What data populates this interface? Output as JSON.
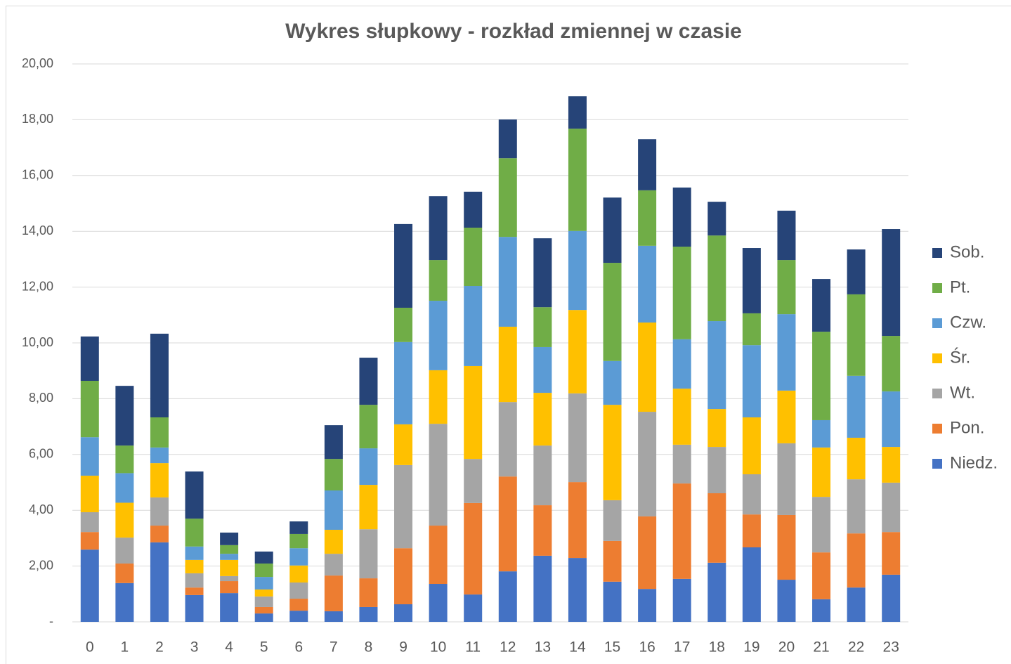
{
  "chart_data": {
    "type": "bar",
    "stacked": true,
    "title": "Wykres słupkowy - rozkład zmiennej w czasie",
    "categories": [
      "0",
      "1",
      "2",
      "3",
      "4",
      "5",
      "6",
      "7",
      "8",
      "9",
      "10",
      "11",
      "12",
      "13",
      "14",
      "15",
      "16",
      "17",
      "18",
      "19",
      "20",
      "21",
      "22",
      "23"
    ],
    "series": [
      {
        "name": "Niedz.",
        "color": "#4472c4",
        "values": [
          2.59,
          1.39,
          2.85,
          0.96,
          1.03,
          0.3,
          0.4,
          0.38,
          0.53,
          0.63,
          1.36,
          0.98,
          1.81,
          2.37,
          2.29,
          1.44,
          1.18,
          1.54,
          2.12,
          2.67,
          1.51,
          0.81,
          1.23,
          1.69
        ]
      },
      {
        "name": "Pon.",
        "color": "#ed7d31",
        "values": [
          0.63,
          0.7,
          0.6,
          0.27,
          0.43,
          0.23,
          0.43,
          1.28,
          1.03,
          2.01,
          2.09,
          3.28,
          3.4,
          1.81,
          2.72,
          1.46,
          2.6,
          3.42,
          2.49,
          1.18,
          2.32,
          1.68,
          1.94,
          1.53
        ]
      },
      {
        "name": "Wt.",
        "color": "#a5a5a5",
        "values": [
          0.71,
          0.93,
          1.01,
          0.51,
          0.18,
          0.38,
          0.58,
          0.78,
          1.76,
          2.98,
          3.65,
          1.58,
          2.67,
          2.14,
          3.18,
          1.46,
          3.75,
          1.39,
          1.66,
          1.44,
          2.57,
          1.99,
          1.94,
          1.77
        ]
      },
      {
        "name": "Śr.",
        "color": "#ffc000",
        "values": [
          1.31,
          1.25,
          1.23,
          0.48,
          0.58,
          0.25,
          0.61,
          0.86,
          1.59,
          1.46,
          1.92,
          3.33,
          2.7,
          1.89,
          2.99,
          3.42,
          3.2,
          2.01,
          1.36,
          2.04,
          1.89,
          1.77,
          1.49,
          1.28
        ]
      },
      {
        "name": "Czw.",
        "color": "#5b9bd5",
        "values": [
          1.38,
          1.06,
          0.56,
          0.48,
          0.22,
          0.45,
          0.62,
          1.41,
          1.31,
          2.95,
          2.49,
          2.87,
          3.22,
          1.64,
          2.83,
          1.57,
          2.75,
          1.77,
          3.15,
          2.59,
          2.74,
          0.98,
          2.22,
          1.99
        ]
      },
      {
        "name": "Pt.",
        "color": "#70ad47",
        "values": [
          2.02,
          0.99,
          1.08,
          1.0,
          0.31,
          0.48,
          0.51,
          1.13,
          1.56,
          1.23,
          1.46,
          2.09,
          2.82,
          1.43,
          3.67,
          3.52,
          1.99,
          3.32,
          3.07,
          1.14,
          1.94,
          3.17,
          2.92,
          1.99
        ]
      },
      {
        "name": "Sob.",
        "color": "#264478",
        "values": [
          1.59,
          2.14,
          3.0,
          1.69,
          0.45,
          0.43,
          0.45,
          1.21,
          1.69,
          3.0,
          2.29,
          1.29,
          1.39,
          2.47,
          1.16,
          2.34,
          1.83,
          2.12,
          1.21,
          2.34,
          1.77,
          1.89,
          1.61,
          3.83
        ]
      }
    ],
    "ylim": [
      0,
      20
    ],
    "yticks": [
      {
        "value": 0,
        "label": "-"
      },
      {
        "value": 2,
        "label": "2,00"
      },
      {
        "value": 4,
        "label": "4,00"
      },
      {
        "value": 6,
        "label": "6,00"
      },
      {
        "value": 8,
        "label": "8,00"
      },
      {
        "value": 10,
        "label": "10,00"
      },
      {
        "value": 12,
        "label": "12,00"
      },
      {
        "value": 14,
        "label": "14,00"
      },
      {
        "value": 16,
        "label": "16,00"
      },
      {
        "value": 18,
        "label": "18,00"
      },
      {
        "value": 20,
        "label": "20,00"
      }
    ],
    "grid": true,
    "legend": "right"
  }
}
